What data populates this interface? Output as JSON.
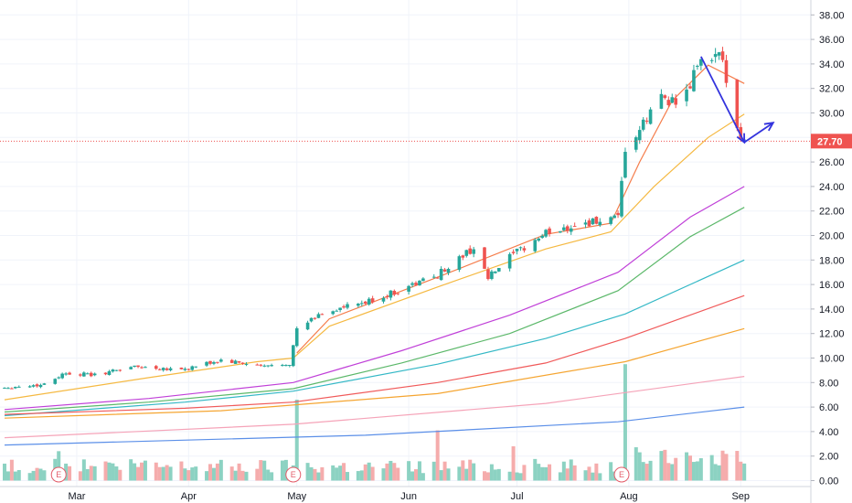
{
  "chart_data": {
    "type": "candlestick",
    "title": "",
    "xlabel": "",
    "ylabel": "",
    "ylim": [
      0,
      39
    ],
    "y_ticks": [
      0,
      2,
      4,
      6,
      8,
      10,
      12,
      14,
      16,
      18,
      20,
      22,
      24,
      26,
      28,
      30,
      32,
      34,
      36,
      38
    ],
    "y_tick_labels": [
      "0.00",
      "2.00",
      "4.00",
      "6.00",
      "8.00",
      "10.00",
      "12.00",
      "14.00",
      "16.00",
      "18.00",
      "20.00",
      "22.00",
      "24.00",
      "26.00",
      "28.00",
      "30.00",
      "32.00",
      "34.00",
      "36.00",
      "38.00"
    ],
    "x_month_labels": [
      {
        "label": "Mar",
        "day": 20
      },
      {
        "label": "Apr",
        "day": 51
      },
      {
        "label": "May",
        "day": 81
      },
      {
        "label": "Jun",
        "day": 112
      },
      {
        "label": "Jul",
        "day": 142
      },
      {
        "label": "Aug",
        "day": 173
      },
      {
        "label": "Sep",
        "day": 204
      }
    ],
    "x_range": [
      0,
      220
    ],
    "last_price": 27.7,
    "last_price_label": "27.70",
    "earnings_label": "E",
    "earnings_days": [
      15,
      80,
      171
    ],
    "price_anchors": [
      [
        0,
        7.6
      ],
      [
        10,
        7.8
      ],
      [
        17,
        8.8
      ],
      [
        25,
        8.6
      ],
      [
        35,
        9.3
      ],
      [
        50,
        9.1
      ],
      [
        60,
        9.8
      ],
      [
        72,
        9.3
      ],
      [
        79,
        9.6
      ],
      [
        81,
        12.3
      ],
      [
        88,
        13.7
      ],
      [
        100,
        14.5
      ],
      [
        110,
        15.6
      ],
      [
        120,
        16.8
      ],
      [
        130,
        19.0
      ],
      [
        134,
        16.5
      ],
      [
        140,
        18.2
      ],
      [
        150,
        20.2
      ],
      [
        160,
        21.0
      ],
      [
        170,
        21.3
      ],
      [
        172,
        27.0
      ],
      [
        176,
        28.5
      ],
      [
        182,
        31.5
      ],
      [
        188,
        30.5
      ],
      [
        192,
        34.0
      ],
      [
        198,
        34.5
      ],
      [
        200,
        33.0
      ],
      [
        203,
        29.0
      ],
      [
        205,
        27.7
      ]
    ],
    "moving_averages": [
      {
        "color": "#f57c4a",
        "points": [
          [
            81,
            10.4
          ],
          [
            90,
            13.2
          ],
          [
            120,
            16.6
          ],
          [
            150,
            20.1
          ],
          [
            168,
            21.0
          ],
          [
            176,
            26.0
          ],
          [
            185,
            31.0
          ],
          [
            195,
            33.9
          ],
          [
            205,
            32.4
          ]
        ]
      },
      {
        "color": "#f5b942",
        "points": [
          [
            0,
            6.6
          ],
          [
            40,
            8.4
          ],
          [
            70,
            9.7
          ],
          [
            80,
            10.0
          ],
          [
            90,
            12.6
          ],
          [
            120,
            15.8
          ],
          [
            150,
            18.9
          ],
          [
            168,
            20.3
          ],
          [
            180,
            24.0
          ],
          [
            195,
            28.0
          ],
          [
            205,
            29.9
          ]
        ]
      },
      {
        "color": "#c040d8",
        "points": [
          [
            0,
            5.8
          ],
          [
            40,
            6.7
          ],
          [
            80,
            8.0
          ],
          [
            110,
            10.6
          ],
          [
            140,
            13.5
          ],
          [
            170,
            17.0
          ],
          [
            190,
            21.5
          ],
          [
            205,
            24.0
          ]
        ]
      },
      {
        "color": "#5cb86a",
        "points": [
          [
            0,
            5.6
          ],
          [
            40,
            6.4
          ],
          [
            80,
            7.5
          ],
          [
            110,
            9.6
          ],
          [
            140,
            12.0
          ],
          [
            170,
            15.5
          ],
          [
            190,
            19.9
          ],
          [
            205,
            22.3
          ]
        ]
      },
      {
        "color": "#34b8c6",
        "points": [
          [
            0,
            5.3
          ],
          [
            50,
            6.4
          ],
          [
            80,
            7.3
          ],
          [
            120,
            9.5
          ],
          [
            150,
            11.6
          ],
          [
            172,
            13.6
          ],
          [
            205,
            18.0
          ]
        ]
      },
      {
        "color": "#f05a5a",
        "points": [
          [
            0,
            5.4
          ],
          [
            50,
            5.9
          ],
          [
            80,
            6.4
          ],
          [
            120,
            8.0
          ],
          [
            150,
            9.6
          ],
          [
            172,
            11.6
          ],
          [
            205,
            15.1
          ]
        ]
      },
      {
        "color": "#f5a531",
        "points": [
          [
            0,
            5.1
          ],
          [
            60,
            5.7
          ],
          [
            120,
            7.1
          ],
          [
            172,
            9.7
          ],
          [
            205,
            12.4
          ]
        ]
      },
      {
        "color": "#f5a3b8",
        "points": [
          [
            0,
            3.5
          ],
          [
            80,
            4.6
          ],
          [
            150,
            6.3
          ],
          [
            205,
            8.5
          ]
        ]
      },
      {
        "color": "#5b8fe8",
        "points": [
          [
            0,
            2.9
          ],
          [
            100,
            3.7
          ],
          [
            170,
            4.8
          ],
          [
            205,
            6.0
          ]
        ]
      }
    ],
    "annotations": [
      {
        "type": "arrow",
        "color": "#3333dd",
        "from": [
          193,
          34.6
        ],
        "to": [
          205,
          27.6
        ]
      },
      {
        "type": "arrow",
        "color": "#3333dd",
        "from": [
          205,
          27.6
        ],
        "to": [
          213,
          29.2
        ]
      }
    ]
  }
}
